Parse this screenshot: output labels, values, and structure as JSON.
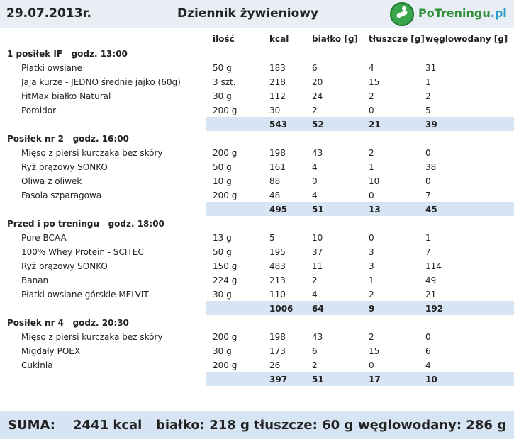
{
  "header": {
    "date": "29.07.2013r.",
    "title": "Dziennik żywieniowy",
    "logo_text_a": "PoTreningu",
    "logo_text_b": ".pl"
  },
  "columns": {
    "qty": "ilość",
    "kcal": "kcal",
    "protein": "białko [g]",
    "fat": "tłuszcze [g]",
    "carbs": "węglowodany [g]"
  },
  "meals": [
    {
      "title": "1 posiłek IF   godz. 13:00",
      "items": [
        {
          "name": "Płatki owsiane",
          "qty": "50 g",
          "kcal": "183",
          "protein": "6",
          "fat": "4",
          "carbs": "31"
        },
        {
          "name": "Jaja kurze - JEDNO średnie jajko (60g)",
          "qty": "3 szt.",
          "kcal": "218",
          "protein": "20",
          "fat": "15",
          "carbs": "1"
        },
        {
          "name": "FitMax białko Natural",
          "qty": "30 g",
          "kcal": "112",
          "protein": "24",
          "fat": "2",
          "carbs": "2"
        },
        {
          "name": "Pomidor",
          "qty": "200 g",
          "kcal": "30",
          "protein": "2",
          "fat": "0",
          "carbs": "5"
        }
      ],
      "total": {
        "kcal": "543",
        "protein": "52",
        "fat": "21",
        "carbs": "39"
      }
    },
    {
      "title": "Posiłek nr 2   godz. 16:00",
      "items": [
        {
          "name": "Mięso z piersi kurczaka bez skóry",
          "qty": "200 g",
          "kcal": "198",
          "protein": "43",
          "fat": "2",
          "carbs": "0"
        },
        {
          "name": "Ryż brązowy SONKO",
          "qty": "50 g",
          "kcal": "161",
          "protein": "4",
          "fat": "1",
          "carbs": "38"
        },
        {
          "name": "Oliwa z oliwek",
          "qty": "10 g",
          "kcal": "88",
          "protein": "0",
          "fat": "10",
          "carbs": "0"
        },
        {
          "name": "Fasola szparagowa",
          "qty": "200 g",
          "kcal": "48",
          "protein": "4",
          "fat": "0",
          "carbs": "7"
        }
      ],
      "total": {
        "kcal": "495",
        "protein": "51",
        "fat": "13",
        "carbs": "45"
      }
    },
    {
      "title": "Przed i po treningu   godz. 18:00",
      "items": [
        {
          "name": "Pure BCAA",
          "qty": "13 g",
          "kcal": "5",
          "protein": "10",
          "fat": "0",
          "carbs": "1"
        },
        {
          "name": "100% Whey Protein - SCITEC",
          "qty": "50 g",
          "kcal": "195",
          "protein": "37",
          "fat": "3",
          "carbs": "7"
        },
        {
          "name": "Ryż brązowy SONKO",
          "qty": "150 g",
          "kcal": "483",
          "protein": "11",
          "fat": "3",
          "carbs": "114"
        },
        {
          "name": "Banan",
          "qty": "224 g",
          "kcal": "213",
          "protein": "2",
          "fat": "1",
          "carbs": "49"
        },
        {
          "name": "Płatki owsiane górskie MELVIT",
          "qty": "30 g",
          "kcal": "110",
          "protein": "4",
          "fat": "2",
          "carbs": "21"
        }
      ],
      "total": {
        "kcal": "1006",
        "protein": "64",
        "fat": "9",
        "carbs": "192"
      }
    },
    {
      "title": "Posiłek nr 4   godz. 20:30",
      "items": [
        {
          "name": "Mięso z piersi kurczaka bez skóry",
          "qty": "200 g",
          "kcal": "198",
          "protein": "43",
          "fat": "2",
          "carbs": "0"
        },
        {
          "name": "Migdały POEX",
          "qty": "30 g",
          "kcal": "173",
          "protein": "6",
          "fat": "15",
          "carbs": "6"
        },
        {
          "name": "Cukinia",
          "qty": "200 g",
          "kcal": "26",
          "protein": "2",
          "fat": "0",
          "carbs": "4"
        }
      ],
      "total": {
        "kcal": "397",
        "protein": "51",
        "fat": "17",
        "carbs": "10"
      }
    }
  ],
  "summary": {
    "label": "SUMA:",
    "kcal": "2441 kcal",
    "protein": "białko: 218 g",
    "fat": "tłuszcze: 60 g",
    "carbs": "węglowodany: 286 g"
  },
  "colors": {
    "header_bg": "#e8eef4",
    "sum_bg": "#d6e4f3"
  }
}
